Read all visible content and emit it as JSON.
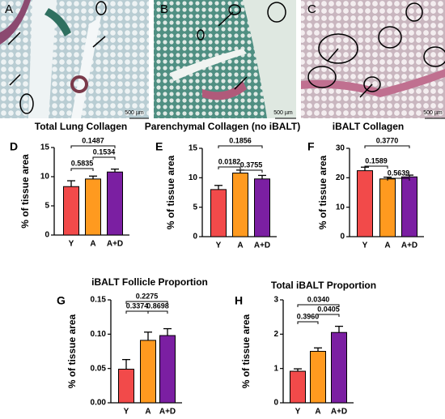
{
  "images": [
    {
      "label": "A",
      "scale": "500 µm"
    },
    {
      "label": "B",
      "scale": "500 µm"
    },
    {
      "label": "C",
      "scale": "500 µm"
    }
  ],
  "chart_data": [
    {
      "type": "bar",
      "panel": "D",
      "title": "Total Lung Collagen",
      "ylabel": "% of tissue area",
      "categories": [
        "Y",
        "A",
        "A+D"
      ],
      "values": [
        8.3,
        9.6,
        10.8
      ],
      "errors": [
        1.0,
        0.5,
        0.5
      ],
      "colors": [
        "#f24a4a",
        "#ff9a1f",
        "#7b1fa2"
      ],
      "ylim": [
        0,
        15
      ],
      "yticks": [
        0,
        5,
        10,
        15
      ],
      "comparisons": [
        {
          "from": "Y",
          "to": "A+D",
          "label": "0.1487"
        },
        {
          "from": "Y",
          "to": "A",
          "label": "0.5835"
        },
        {
          "from": "A",
          "to": "A+D",
          "label": "0.1534"
        }
      ]
    },
    {
      "type": "bar",
      "panel": "E",
      "title": "Parenchymal Collagen (no iBALT)",
      "ylabel": "% of tissue area",
      "categories": [
        "Y",
        "A",
        "A+D"
      ],
      "values": [
        8.0,
        10.8,
        9.8
      ],
      "errors": [
        0.7,
        0.5,
        0.6
      ],
      "colors": [
        "#f24a4a",
        "#ff9a1f",
        "#7b1fa2"
      ],
      "ylim": [
        0,
        15
      ],
      "yticks": [
        0,
        5,
        10,
        15
      ],
      "comparisons": [
        {
          "from": "Y",
          "to": "A+D",
          "label": "0.1856"
        },
        {
          "from": "Y",
          "to": "A",
          "label": "0.0182"
        },
        {
          "from": "A",
          "to": "A+D",
          "label": "0.3755"
        }
      ]
    },
    {
      "type": "bar",
      "panel": "F",
      "title": "iBALT Collagen",
      "ylabel": "% of tissue area",
      "categories": [
        "Y",
        "A",
        "A+D"
      ],
      "values": [
        22.4,
        19.6,
        20.3
      ],
      "errors": [
        1.2,
        0.6,
        0.6
      ],
      "colors": [
        "#f24a4a",
        "#ff9a1f",
        "#7b1fa2"
      ],
      "ylim": [
        0,
        30
      ],
      "yticks": [
        0,
        10,
        20,
        30
      ],
      "comparisons": [
        {
          "from": "Y",
          "to": "A+D",
          "label": "0.3770"
        },
        {
          "from": "Y",
          "to": "A",
          "label": "0.1589"
        },
        {
          "from": "A",
          "to": "A+D",
          "label": "0.5639"
        }
      ]
    },
    {
      "type": "bar",
      "panel": "G",
      "title": "iBALT Follicle Proportion",
      "ylabel": "% of tissue area",
      "categories": [
        "Y",
        "A",
        "A+D"
      ],
      "values": [
        0.049,
        0.091,
        0.098
      ],
      "errors": [
        0.014,
        0.012,
        0.01
      ],
      "colors": [
        "#f24a4a",
        "#ff9a1f",
        "#7b1fa2"
      ],
      "ylim": [
        0,
        0.15
      ],
      "yticks": [
        {
          "value": 0,
          "label": "0.00"
        },
        0.05,
        {
          "value": 0.1,
          "label": "0.10"
        },
        0.15
      ],
      "comparisons": [
        {
          "from": "Y",
          "to": "A+D",
          "label": "0.2275"
        },
        {
          "from": "Y",
          "to": "A",
          "label": "0.3374"
        },
        {
          "from": "A",
          "to": "A+D",
          "label": "0.8698"
        }
      ]
    },
    {
      "type": "bar",
      "panel": "H",
      "title": "Total iBALT Proportion",
      "ylabel": "% of tissue area",
      "categories": [
        "Y",
        "A",
        "A+D"
      ],
      "values": [
        0.92,
        1.5,
        2.05
      ],
      "errors": [
        0.07,
        0.1,
        0.18
      ],
      "colors": [
        "#f24a4a",
        "#ff9a1f",
        "#7b1fa2"
      ],
      "ylim": [
        0,
        3
      ],
      "yticks": [
        0,
        1,
        2,
        3
      ],
      "comparisons": [
        {
          "from": "Y",
          "to": "A+D",
          "label": "0.0340"
        },
        {
          "from": "Y",
          "to": "A",
          "label": "0.3960"
        },
        {
          "from": "A",
          "to": "A+D",
          "label": "0.0405"
        }
      ]
    }
  ]
}
